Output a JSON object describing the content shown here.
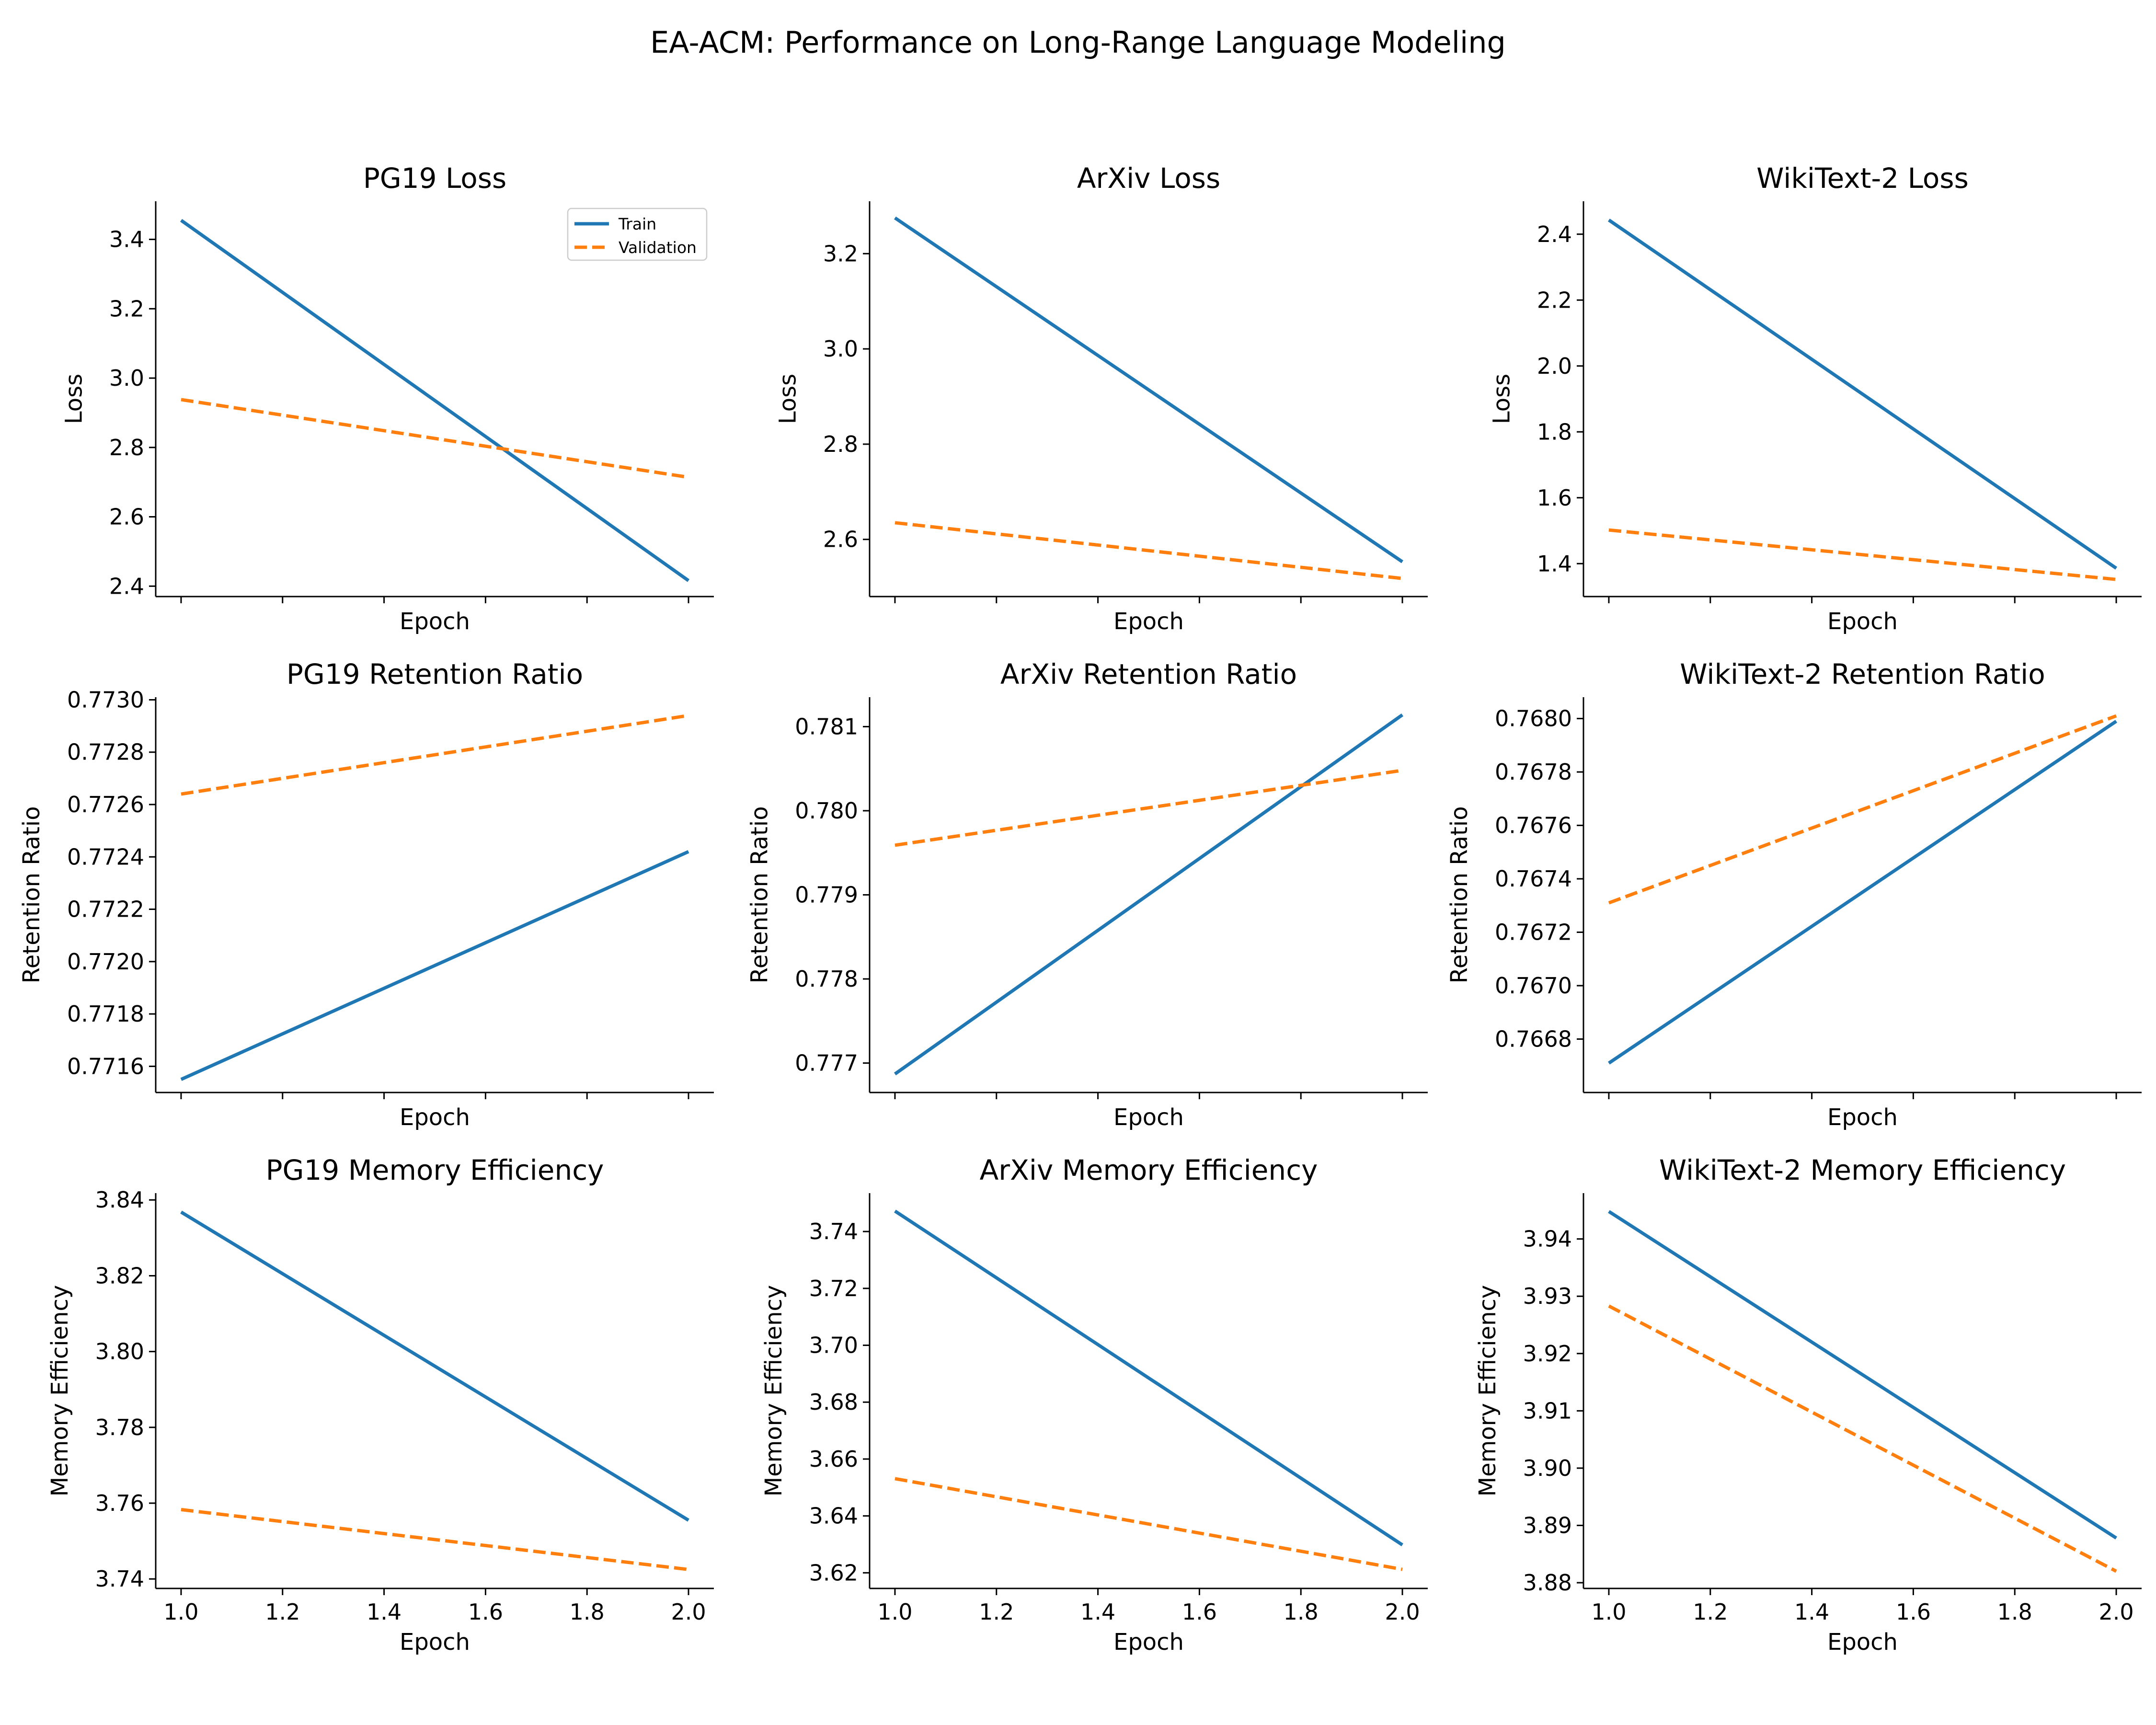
{
  "figure": {
    "suptitle": "EA-ACM: Performance on Long-Range Language Modeling",
    "colors": {
      "train": "#1f77b4",
      "validation": "#ff7f0e",
      "axis": "#000000"
    }
  },
  "legend": {
    "placement": "upper right of first subplot",
    "entries": [
      "Train",
      "Validation"
    ]
  },
  "chart_data": [
    {
      "type": "line",
      "title": "PG19 Loss",
      "xlabel": "Epoch",
      "ylabel": "Loss",
      "x": [
        1.0,
        2.0
      ],
      "xlim": [
        0.95,
        2.05
      ],
      "ylim": [
        2.37,
        3.51
      ],
      "yticks": [
        "2.4",
        "2.6",
        "2.8",
        "3.0",
        "3.2",
        "3.4"
      ],
      "series": [
        {
          "name": "Train",
          "values": [
            3.455,
            2.416
          ]
        },
        {
          "name": "Validation",
          "values": [
            2.938,
            2.714
          ]
        }
      ]
    },
    {
      "type": "line",
      "title": "ArXiv Loss",
      "xlabel": "Epoch",
      "ylabel": "Loss",
      "x": [
        1.0,
        2.0
      ],
      "xlim": [
        0.95,
        2.05
      ],
      "ylim": [
        2.48,
        3.31
      ],
      "yticks": [
        "2.6",
        "2.8",
        "3.0",
        "3.2"
      ],
      "series": [
        {
          "name": "Train",
          "values": [
            3.275,
            2.553
          ]
        },
        {
          "name": "Validation",
          "values": [
            2.635,
            2.518
          ]
        }
      ]
    },
    {
      "type": "line",
      "title": "WikiText-2 Loss",
      "xlabel": "Epoch",
      "ylabel": "Loss",
      "x": [
        1.0,
        2.0
      ],
      "xlim": [
        0.95,
        2.05
      ],
      "ylim": [
        1.3,
        2.5
      ],
      "yticks": [
        "1.4",
        "1.6",
        "1.8",
        "2.0",
        "2.2",
        "2.4"
      ],
      "series": [
        {
          "name": "Train",
          "values": [
            2.443,
            1.386
          ]
        },
        {
          "name": "Validation",
          "values": [
            1.502,
            1.352
          ]
        }
      ]
    },
    {
      "type": "line",
      "title": "PG19 Retention Ratio",
      "xlabel": "Epoch",
      "ylabel": "Retention Ratio",
      "x": [
        1.0,
        2.0
      ],
      "xlim": [
        0.95,
        2.05
      ],
      "ylim": [
        0.7715,
        0.77301
      ],
      "yticks": [
        "0.7716",
        "0.7718",
        "0.7720",
        "0.7722",
        "0.7724",
        "0.7726",
        "0.7728",
        "0.7730"
      ],
      "series": [
        {
          "name": "Train",
          "values": [
            0.77155,
            0.77242
          ]
        },
        {
          "name": "Validation",
          "values": [
            0.77264,
            0.77294
          ]
        }
      ]
    },
    {
      "type": "line",
      "title": "ArXiv Retention Ratio",
      "xlabel": "Epoch",
      "ylabel": "Retention Ratio",
      "x": [
        1.0,
        2.0
      ],
      "xlim": [
        0.95,
        2.05
      ],
      "ylim": [
        0.77665,
        0.78135
      ],
      "yticks": [
        "0.777",
        "0.778",
        "0.779",
        "0.780",
        "0.781"
      ],
      "series": [
        {
          "name": "Train",
          "values": [
            0.77687,
            0.78114
          ]
        },
        {
          "name": "Validation",
          "values": [
            0.77959,
            0.78048
          ]
        }
      ]
    },
    {
      "type": "line",
      "title": "WikiText-2 Retention Ratio",
      "xlabel": "Epoch",
      "ylabel": "Retention Ratio",
      "x": [
        1.0,
        2.0
      ],
      "xlim": [
        0.95,
        2.05
      ],
      "ylim": [
        0.7666,
        0.76808
      ],
      "yticks": [
        "0.7668",
        "0.7670",
        "0.7672",
        "0.7674",
        "0.7676",
        "0.7678",
        "0.7680"
      ],
      "series": [
        {
          "name": "Train",
          "values": [
            0.76671,
            0.76799
          ]
        },
        {
          "name": "Validation",
          "values": [
            0.76731,
            0.76801
          ]
        }
      ]
    },
    {
      "type": "line",
      "title": "PG19 Memory Efficiency",
      "xlabel": "Epoch",
      "ylabel": "Memory Efficiency",
      "x": [
        1.0,
        2.0
      ],
      "xlim": [
        0.95,
        2.05
      ],
      "ylim": [
        3.7375,
        3.8418
      ],
      "yticks": [
        "3.74",
        "3.76",
        "3.78",
        "3.80",
        "3.82",
        "3.84"
      ],
      "xticks": [
        "1.0",
        "1.2",
        "1.4",
        "1.6",
        "1.8",
        "2.0"
      ],
      "series": [
        {
          "name": "Train",
          "values": [
            3.8368,
            3.7555
          ]
        },
        {
          "name": "Validation",
          "values": [
            3.7583,
            3.7425
          ]
        }
      ]
    },
    {
      "type": "line",
      "title": "ArXiv Memory Efficiency",
      "xlabel": "Epoch",
      "ylabel": "Memory Efficiency",
      "x": [
        1.0,
        2.0
      ],
      "xlim": [
        0.95,
        2.05
      ],
      "ylim": [
        3.6145,
        3.7535
      ],
      "yticks": [
        "3.62",
        "3.64",
        "3.66",
        "3.68",
        "3.70",
        "3.72",
        "3.74"
      ],
      "xticks": [
        "1.0",
        "1.2",
        "1.4",
        "1.6",
        "1.8",
        "2.0"
      ],
      "series": [
        {
          "name": "Train",
          "values": [
            3.7472,
            3.6298
          ]
        },
        {
          "name": "Validation",
          "values": [
            3.6531,
            3.6212
          ]
        }
      ]
    },
    {
      "type": "line",
      "title": "WikiText-2 Memory Efficiency",
      "xlabel": "Epoch",
      "ylabel": "Memory Efficiency",
      "x": [
        1.0,
        2.0
      ],
      "xlim": [
        0.95,
        2.05
      ],
      "ylim": [
        3.879,
        3.948
      ],
      "yticks": [
        "3.88",
        "3.89",
        "3.90",
        "3.91",
        "3.92",
        "3.93",
        "3.94"
      ],
      "xticks": [
        "1.0",
        "1.2",
        "1.4",
        "1.6",
        "1.8",
        "2.0"
      ],
      "series": [
        {
          "name": "Train",
          "values": [
            3.9448,
            3.8878
          ]
        },
        {
          "name": "Validation",
          "values": [
            3.9283,
            3.882
          ]
        }
      ]
    }
  ]
}
